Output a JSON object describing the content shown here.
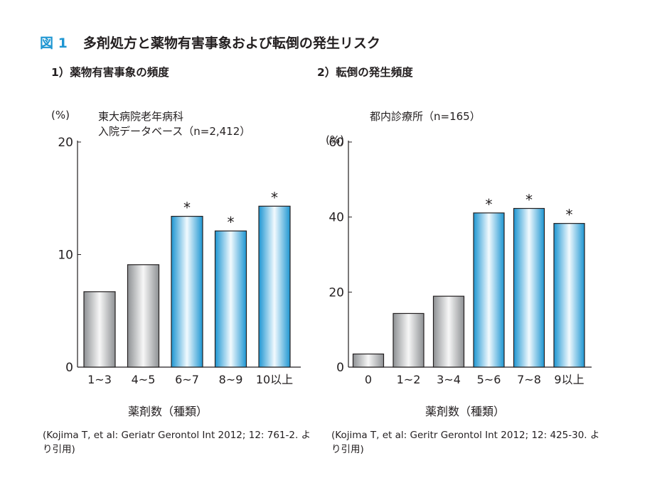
{
  "figure": {
    "number": "図 1",
    "title": "多剤処方と薬物有害事象および転倒の発生リスク"
  },
  "colors": {
    "accent": "#1e96d2",
    "bar_gray": "#b9bbbe",
    "bar_blue": "#38a8e0",
    "text": "#231f20"
  },
  "chart_data": [
    {
      "type": "bar",
      "panel_title": "1）薬物有害事象の頻度",
      "unit_label": "(%)",
      "dataset_label_line1": "東大病院老年病科",
      "dataset_label_line2": "入院データベース（n=2,412）",
      "xlabel": "薬剤数（種類）",
      "ylabel": "(%)",
      "categories": [
        "1~3",
        "4~5",
        "6~7",
        "8~9",
        "10以上"
      ],
      "values": [
        6.7,
        9.1,
        13.4,
        12.1,
        14.3
      ],
      "significant": [
        false,
        false,
        true,
        true,
        true
      ],
      "significance_marker": "*",
      "ylim": [
        0,
        20
      ],
      "yticks": [
        0,
        10,
        20
      ],
      "grid": false,
      "source": "(Kojima T, et al: Geriatr Gerontol Int 2012; 12: 761-2. より引用)"
    },
    {
      "type": "bar",
      "panel_title": "2）転倒の発生頻度",
      "unit_label": "(%)",
      "dataset_label_line1": "都内診療所（n=165）",
      "dataset_label_line2": "",
      "xlabel": "薬剤数（種類）",
      "ylabel": "(%)",
      "categories": [
        "0",
        "1~2",
        "3~4",
        "5~6",
        "7~8",
        "9以上"
      ],
      "values": [
        3.5,
        14.3,
        18.9,
        41.1,
        42.3,
        38.3
      ],
      "significant": [
        false,
        false,
        false,
        true,
        true,
        true
      ],
      "significance_marker": "*",
      "ylim": [
        0,
        60
      ],
      "yticks": [
        0,
        20,
        40,
        60
      ],
      "grid": false,
      "source": "(Kojima T, et al: Geritr Gerontol Int 2012; 12: 425-30. より引用)"
    }
  ]
}
